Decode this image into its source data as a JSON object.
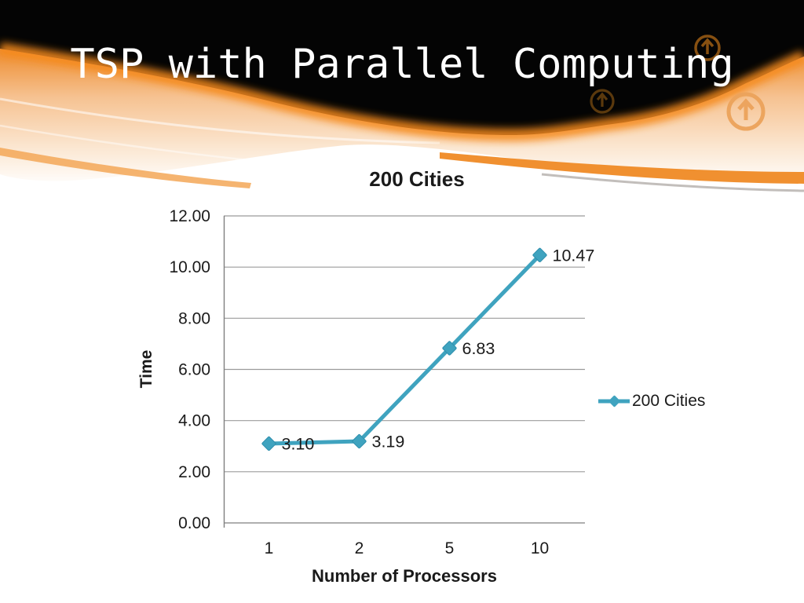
{
  "slide": {
    "title": "TSP with Parallel Computing",
    "background_color": "#ffffff",
    "header": {
      "black_color": "#040404",
      "orange_bright": "#F08019",
      "orange_glow": "#F58A1F",
      "peach_light": "#F6C291",
      "decor_icons": [
        "circle-up-arrow-icon",
        "circle-up-arrow-icon",
        "circle-up-arrow-icon"
      ]
    }
  },
  "chart_data": {
    "type": "line",
    "title": "200 Cities",
    "categories": [
      "1",
      "2",
      "5",
      "10"
    ],
    "series": [
      {
        "name": "200 Cities",
        "values": [
          3.1,
          3.19,
          6.83,
          10.47
        ],
        "point_labels": [
          "3.10",
          "3.19",
          "6.83",
          "10.47"
        ],
        "color": "#3FA3BF",
        "marker": "diamond",
        "marker_edge_color": "#2E8FAD"
      }
    ],
    "xlabel": "Number of Processors",
    "ylabel": "Time",
    "ylim": [
      0,
      12
    ],
    "ytick_step": 2,
    "ytick_labels": [
      "0.00",
      "2.00",
      "4.00",
      "6.00",
      "8.00",
      "10.00",
      "12.00"
    ],
    "grid": true,
    "gridline_color": "#9B9B9B",
    "axis_line_color": "#7F7F7F",
    "legend_position": "right"
  }
}
